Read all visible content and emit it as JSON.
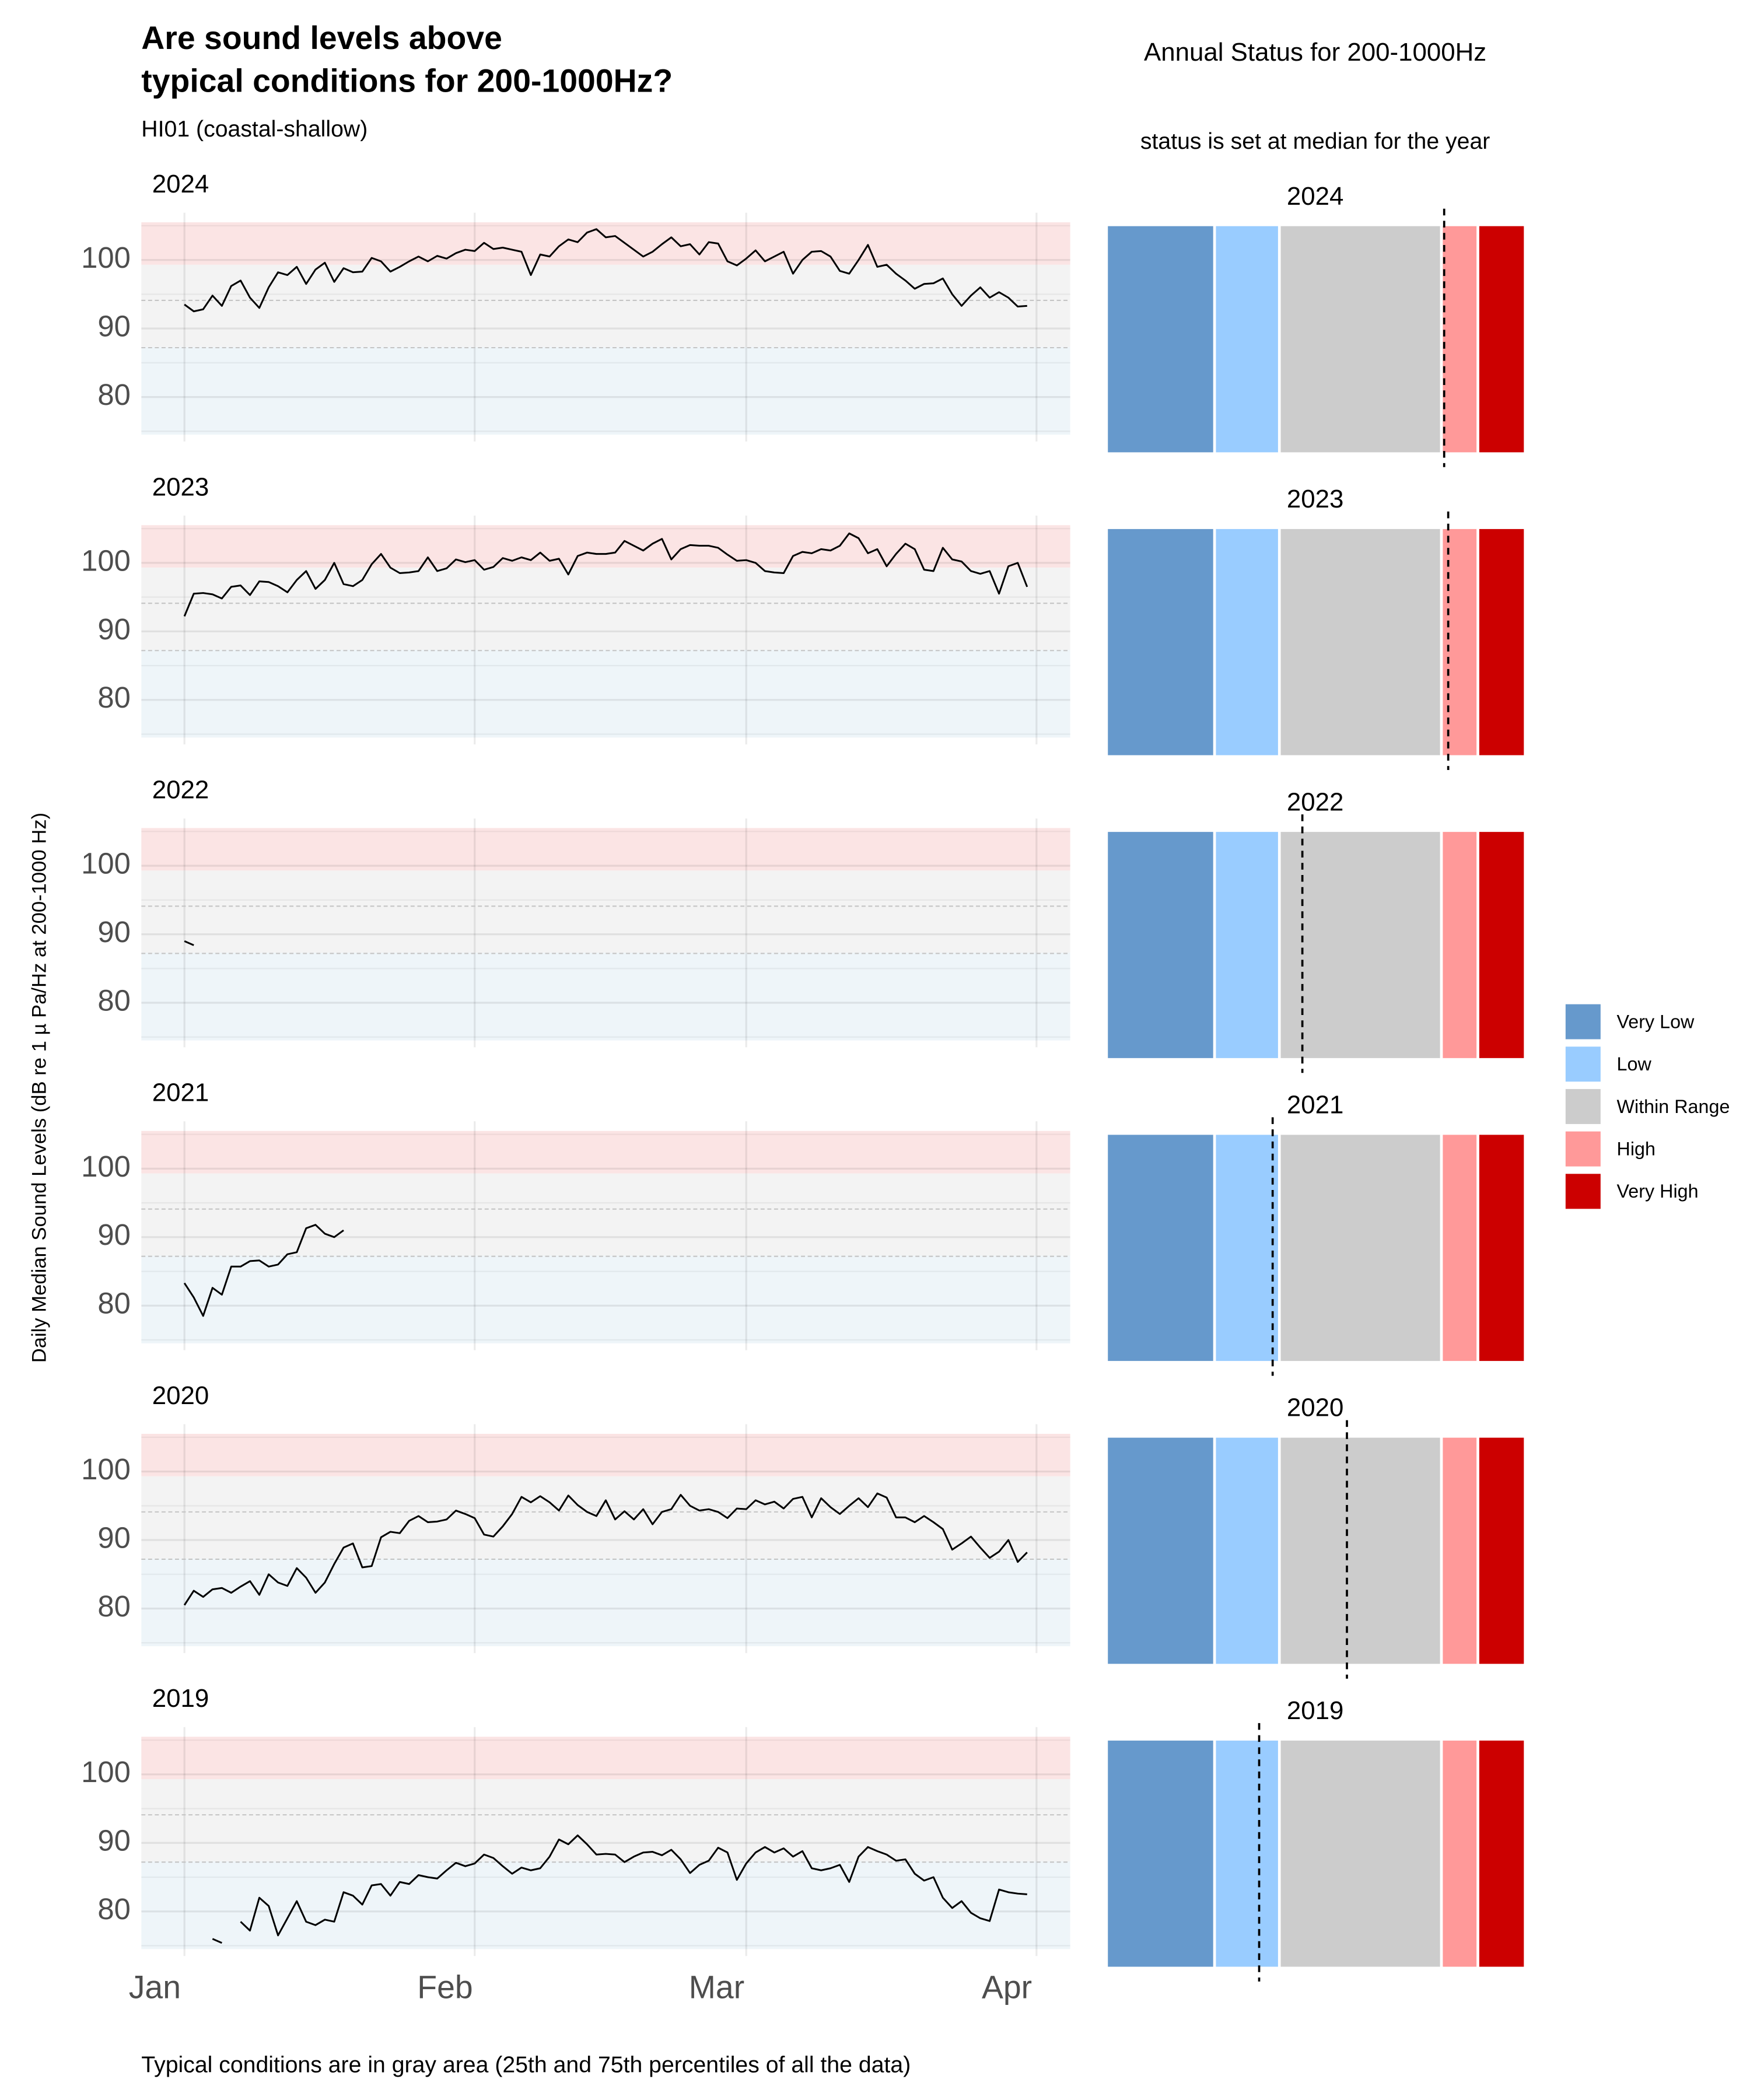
{
  "chart_data": {
    "type": "line",
    "title": [
      "Are sound levels above",
      "typical conditions for 200-1000Hz?"
    ],
    "subtitle": "HI01 (coastal-shallow)",
    "y_label": "Daily Median Sound Levels (dB re 1 µ Pa/Hz at 200-1000 Hz)",
    "caption": "Typical conditions are in gray area (25th and 75th percentiles of all the data)",
    "status_title": "Annual Status for 200-1000Hz",
    "status_subtitle": "status is set at median for the year",
    "line_color": "#000000",
    "grid": true,
    "legend_position": "right",
    "xlim": [
      -3.6,
      95.6
    ],
    "xticks": [
      {
        "value": 1,
        "label": "Jan"
      },
      {
        "value": 32,
        "label": "Feb"
      },
      {
        "value": 61,
        "label": "Mar"
      },
      {
        "value": 92,
        "label": "Apr"
      }
    ],
    "ylim": [
      73.5,
      106.9
    ],
    "yticks": [
      80,
      90,
      100
    ],
    "minor_yticks": [
      75,
      85,
      95,
      105
    ],
    "dashed_lines": [
      87.2,
      94.1
    ],
    "bands": [
      {
        "range": [
          99.3,
          105.5
        ],
        "color": "#fbe4e4"
      },
      {
        "range": [
          87.3,
          99.3
        ],
        "color": "#f3f3f3"
      },
      {
        "range": [
          74.5,
          87.3
        ],
        "color": "#eef5f9"
      }
    ],
    "status_xlim": [
      74.5,
      105.5
    ],
    "status_segments": [
      {
        "name": "Very Low",
        "color": "#6699cc",
        "start": 74.5,
        "end": 82.5
      },
      {
        "name": "Low",
        "color": "#99ccff",
        "start": 82.5,
        "end": 87.3
      },
      {
        "name": "Within Range",
        "color": "#cccccc",
        "start": 87.3,
        "end": 99.3
      },
      {
        "name": "High",
        "color": "#ff9999",
        "start": 99.3,
        "end": 102
      },
      {
        "name": "Very High",
        "color": "#cc0000",
        "start": 102,
        "end": 105.5
      }
    ],
    "x": [
      1,
      2,
      3,
      4,
      5,
      6,
      7,
      8,
      9,
      10,
      11,
      12,
      13,
      14,
      15,
      16,
      17,
      18,
      19,
      20,
      21,
      22,
      23,
      24,
      25,
      26,
      27,
      28,
      29,
      30,
      31,
      32,
      33,
      34,
      35,
      36,
      37,
      38,
      39,
      40,
      41,
      42,
      43,
      44,
      45,
      46,
      47,
      48,
      49,
      50,
      51,
      52,
      53,
      54,
      55,
      56,
      57,
      58,
      59,
      60,
      61,
      62,
      63,
      64,
      65,
      66,
      67,
      68,
      69,
      70,
      71,
      72,
      73,
      74,
      75,
      76,
      77,
      78,
      79,
      80,
      81,
      82,
      83,
      84,
      85,
      86,
      87,
      88,
      89,
      90,
      91
    ],
    "panels": [
      {
        "year": "2024",
        "median": 99.5,
        "values": [
          93.5,
          92.5,
          92.8,
          94.8,
          93.3,
          96.2,
          97,
          94.5,
          93,
          96,
          98.2,
          97.8,
          99,
          96.5,
          98.6,
          99.6,
          96.8,
          98.8,
          98.2,
          98.3,
          100.3,
          99.8,
          98.3,
          99,
          99.8,
          100.5,
          99.8,
          100.6,
          100.2,
          101,
          101.5,
          101.3,
          102.5,
          101.6,
          101.8,
          101.5,
          101.2,
          97.8,
          100.8,
          100.5,
          102,
          103,
          102.6,
          104,
          104.5,
          103.3,
          103.5,
          102.5,
          101.5,
          100.5,
          101.2,
          102.3,
          103.3,
          102,
          102.3,
          100.8,
          102.6,
          102.4,
          99.8,
          99.2,
          100.2,
          101.4,
          99.8,
          100.5,
          101.2,
          98,
          100,
          101.2,
          101.3,
          100.5,
          98.4,
          98,
          100,
          102.2,
          99,
          99.3,
          98,
          97,
          95.8,
          96.5,
          96.6,
          97.3,
          95,
          93.3,
          94.8,
          96,
          94.5,
          95.3,
          94.5,
          93.2,
          93.3
        ]
      },
      {
        "year": "2023",
        "median": 99.8,
        "values": [
          92.2,
          95.5,
          95.6,
          95.4,
          94.8,
          96.5,
          96.7,
          95.3,
          97.3,
          97.2,
          96.6,
          95.7,
          97.5,
          98.8,
          96.2,
          97.5,
          100,
          96.9,
          96.6,
          97.5,
          99.8,
          101.3,
          99.3,
          98.5,
          98.6,
          98.8,
          100.8,
          98.8,
          99.2,
          100.5,
          100.1,
          100.4,
          99,
          99.4,
          100.7,
          100.3,
          100.8,
          100.4,
          101.5,
          100.3,
          100.6,
          98.3,
          101,
          101.5,
          101.3,
          101.3,
          101.5,
          103.2,
          102.5,
          101.8,
          102.8,
          103.5,
          100.5,
          102,
          102.6,
          102.5,
          102.5,
          102.2,
          101.2,
          100.3,
          100.4,
          100,
          98.8,
          98.6,
          98.5,
          101,
          101.6,
          101.4,
          102,
          101.8,
          102.5,
          104.3,
          103.6,
          101.4,
          102,
          99.5,
          101.3,
          102.8,
          102,
          99,
          98.8,
          102.2,
          100.5,
          100.2,
          98.8,
          98.4,
          98.8,
          95.5,
          99.5,
          100,
          96.5
        ]
      },
      {
        "year": "2022",
        "median": 89,
        "values": [
          89,
          88.4,
          null,
          null,
          null,
          null,
          null,
          null,
          null,
          null,
          null,
          null,
          null,
          null,
          null,
          null,
          null,
          null,
          null,
          null,
          null,
          null,
          null,
          null,
          null,
          null,
          null,
          null,
          null,
          null,
          null,
          null,
          null,
          null,
          null,
          null,
          null,
          null,
          null,
          null,
          null,
          null,
          null,
          null,
          null,
          null,
          null,
          null,
          null,
          null,
          null,
          null,
          null,
          null,
          null,
          null,
          null,
          null,
          null,
          null,
          null,
          null,
          null,
          null,
          null,
          null,
          null,
          null,
          null,
          null,
          null,
          null,
          null,
          null,
          null,
          null,
          null,
          null,
          null,
          null,
          null,
          null,
          null,
          null,
          null,
          null,
          null,
          null,
          null,
          null,
          null
        ]
      },
      {
        "year": "2021",
        "median": 86.8,
        "values": [
          83.3,
          81.2,
          78.5,
          82.6,
          81.6,
          85.7,
          85.7,
          86.5,
          86.6,
          85.7,
          86,
          87.5,
          87.8,
          91.3,
          91.8,
          90.5,
          90,
          91,
          null,
          null,
          null,
          null,
          null,
          null,
          null,
          null,
          null,
          null,
          null,
          null,
          null,
          null,
          null,
          null,
          null,
          null,
          null,
          null,
          null,
          null,
          null,
          null,
          null,
          null,
          null,
          null,
          null,
          null,
          null,
          null,
          null,
          null,
          null,
          null,
          null,
          null,
          null,
          null,
          null,
          null,
          null,
          null,
          null,
          null,
          null,
          null,
          null,
          null,
          null,
          null,
          null,
          null,
          null,
          null,
          null,
          null,
          null,
          null,
          null,
          null,
          null,
          null,
          null,
          null,
          null,
          null,
          null,
          null,
          null,
          null,
          null
        ]
      },
      {
        "year": "2020",
        "median": 92.3,
        "values": [
          80.5,
          82.6,
          81.7,
          82.8,
          83,
          82.3,
          83.2,
          84,
          82,
          85,
          83.8,
          83.3,
          85.9,
          84.5,
          82.3,
          83.8,
          86.5,
          88.9,
          89.5,
          86,
          86.2,
          90.4,
          91.2,
          91,
          92.8,
          93.5,
          92.6,
          92.7,
          93,
          94.3,
          93.8,
          93.2,
          90.8,
          90.5,
          92,
          93.8,
          96.3,
          95.5,
          96.4,
          95.5,
          94.3,
          96.5,
          95.1,
          94.1,
          93.5,
          95.8,
          93,
          94.2,
          93,
          94.5,
          92.3,
          94.1,
          94.5,
          96.6,
          95,
          94.3,
          94.5,
          94.1,
          93.2,
          94.6,
          94.5,
          95.8,
          95.2,
          95.6,
          94.6,
          96,
          96.3,
          93.3,
          96.1,
          94.8,
          93.8,
          95,
          96.1,
          94.8,
          96.8,
          96.2,
          93.3,
          93.3,
          92.6,
          93.5,
          92.6,
          91.6,
          88.6,
          89.5,
          90.5,
          88.9,
          87.4,
          88.3,
          90,
          86.8,
          88.2
        ]
      },
      {
        "year": "2019",
        "median": 85.8,
        "values": [
          null,
          null,
          null,
          76,
          75.4,
          null,
          78.5,
          77.2,
          82,
          80.8,
          76.5,
          79,
          81.5,
          78.5,
          78,
          78.8,
          78.5,
          82.8,
          82.3,
          81,
          83.8,
          84,
          82.3,
          84.3,
          84,
          85.3,
          85,
          84.8,
          86,
          87.1,
          86.6,
          87,
          88.3,
          87.8,
          86.6,
          85.5,
          86.4,
          86,
          86.3,
          88,
          90.5,
          89.8,
          91.1,
          89.8,
          88.3,
          88.4,
          88.3,
          87.2,
          88,
          88.6,
          88.7,
          88.2,
          89,
          87.6,
          85.6,
          86.8,
          87.4,
          89.3,
          88.6,
          84.6,
          87,
          88.6,
          89.4,
          88.6,
          89.2,
          88,
          88.8,
          86.3,
          86,
          86.3,
          86.8,
          84.3,
          88,
          89.4,
          88.8,
          88.3,
          87.4,
          87.6,
          85.5,
          84.5,
          85,
          82,
          80.5,
          81.5,
          79.8,
          79,
          78.6,
          83.2,
          82.8,
          82.6,
          82.5
        ]
      }
    ]
  }
}
